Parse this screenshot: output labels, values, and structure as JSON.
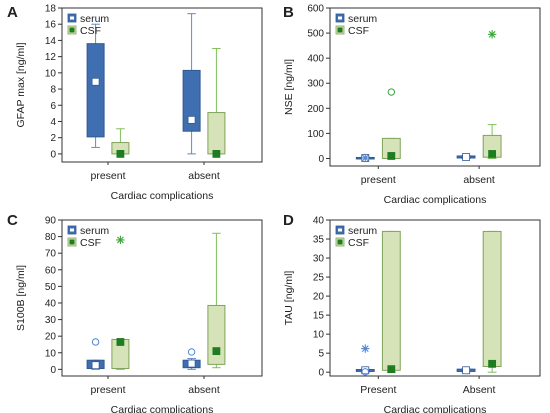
{
  "colors": {
    "serum_box": "#3f6fb0",
    "serum_edge": "#2f5a94",
    "serum_whisker": "#5b8ad0",
    "csf_box": "#d6e3b8",
    "csf_edge": "#7fa35a",
    "csf_whisker": "#7fbf5a",
    "csf_median": "#1e7d1e",
    "serum_median": "#ffffff",
    "outlier_serum": "#4f86d8",
    "outlier_csf": "#3aa83a",
    "axis": "#333333",
    "grid": "#b9b9b9"
  },
  "chart_data": [
    {
      "panel": "A",
      "type": "box",
      "xlabel": "Cardiac complications",
      "ylabel": "GFAP max [ng/ml]",
      "categories": [
        "present",
        "absent"
      ],
      "ylim": [
        -1,
        18
      ],
      "yticks": [
        0,
        2,
        4,
        6,
        8,
        10,
        12,
        14,
        16,
        18
      ],
      "legend": [
        "serum",
        "CSF"
      ],
      "series": [
        {
          "name": "serum",
          "boxes": [
            {
              "q1": 2.1,
              "q3": 13.6,
              "median": 8.9,
              "wlow": 0.8,
              "whigh": 16.0
            },
            {
              "q1": 2.8,
              "q3": 10.3,
              "median": 4.2,
              "wlow": 0.0,
              "whigh": 17.3
            }
          ]
        },
        {
          "name": "CSF",
          "boxes": [
            {
              "q1": 0.0,
              "q3": 1.4,
              "median": 0.0,
              "wlow": 0.0,
              "whigh": 3.1
            },
            {
              "q1": 0.0,
              "q3": 5.1,
              "median": 0.0,
              "wlow": 0.0,
              "whigh": 13.0
            }
          ]
        }
      ],
      "outliers": []
    },
    {
      "panel": "B",
      "type": "box",
      "xlabel": "Cardiac complications",
      "ylabel": "NSE [ng/ml]",
      "categories": [
        "present",
        "absent"
      ],
      "ylim": [
        -30,
        600
      ],
      "yticks": [
        0,
        100,
        200,
        300,
        400,
        500,
        600
      ],
      "legend": [
        "serum",
        "CSF"
      ],
      "series": [
        {
          "name": "serum",
          "boxes": [
            {
              "q1": 0,
              "q3": 4,
              "median": 2,
              "wlow": 0,
              "whigh": 6
            },
            {
              "q1": 2,
              "q3": 10,
              "median": 6,
              "wlow": 0,
              "whigh": 12
            }
          ]
        },
        {
          "name": "CSF",
          "boxes": [
            {
              "q1": 0,
              "q3": 80,
              "median": 10,
              "wlow": 0,
              "whigh": 80
            },
            {
              "q1": 5,
              "q3": 92,
              "median": 18,
              "wlow": 0,
              "whigh": 135
            }
          ]
        }
      ],
      "outliers": [
        {
          "series": "serum",
          "category": "present",
          "value": 2,
          "kind": "extreme"
        },
        {
          "series": "CSF",
          "category": "present",
          "value": 265,
          "kind": "outlier"
        },
        {
          "series": "CSF",
          "category": "absent",
          "value": 495,
          "kind": "extreme"
        }
      ]
    },
    {
      "panel": "C",
      "type": "box",
      "xlabel": "Cardiac complications",
      "ylabel": "S100B [ng/ml]",
      "categories": [
        "present",
        "absent"
      ],
      "ylim": [
        -4,
        90
      ],
      "yticks": [
        0,
        10,
        20,
        30,
        40,
        50,
        60,
        70,
        80,
        90
      ],
      "legend": [
        "serum",
        "CSF"
      ],
      "series": [
        {
          "name": "serum",
          "boxes": [
            {
              "q1": 0.5,
              "q3": 5.5,
              "median": 2.5,
              "wlow": 0,
              "whigh": 5.5
            },
            {
              "q1": 1.0,
              "q3": 5.5,
              "median": 3.5,
              "wlow": 0,
              "whigh": 6.5
            }
          ]
        },
        {
          "name": "CSF",
          "boxes": [
            {
              "q1": 0.5,
              "q3": 18,
              "median": 16.5,
              "wlow": 0,
              "whigh": 18
            },
            {
              "q1": 3.0,
              "q3": 38.5,
              "median": 11,
              "wlow": 1,
              "whigh": 82
            }
          ]
        }
      ],
      "outliers": [
        {
          "series": "serum",
          "category": "present",
          "value": 16.5,
          "kind": "outlier"
        },
        {
          "series": "serum",
          "category": "absent",
          "value": 10.5,
          "kind": "outlier"
        },
        {
          "series": "CSF",
          "category": "present",
          "value": 78,
          "kind": "extreme"
        }
      ]
    },
    {
      "panel": "D",
      "type": "box",
      "xlabel": "Cardiac complications",
      "ylabel": "TAU [ng/ml]",
      "categories": [
        "Present",
        "Absent"
      ],
      "ylim": [
        -1,
        40
      ],
      "yticks": [
        0,
        5,
        10,
        15,
        20,
        25,
        30,
        35,
        40
      ],
      "legend": [
        "serum",
        "CSF"
      ],
      "series": [
        {
          "name": "serum",
          "boxes": [
            {
              "q1": 0.2,
              "q3": 0.7,
              "median": 0.5,
              "wlow": 0,
              "whigh": 0.8
            },
            {
              "q1": 0.2,
              "q3": 0.8,
              "median": 0.5,
              "wlow": 0,
              "whigh": 0.9
            }
          ]
        },
        {
          "name": "CSF",
          "boxes": [
            {
              "q1": 0.5,
              "q3": 37,
              "median": 0.8,
              "wlow": 0,
              "whigh": 37
            },
            {
              "q1": 1.5,
              "q3": 37,
              "median": 2.2,
              "wlow": 0,
              "whigh": 37
            }
          ]
        }
      ],
      "outliers": [
        {
          "series": "serum",
          "category": "Present",
          "value": 6.2,
          "kind": "extreme"
        },
        {
          "series": "serum",
          "category": "Present",
          "value": 0.1,
          "kind": "outlier"
        }
      ]
    }
  ]
}
